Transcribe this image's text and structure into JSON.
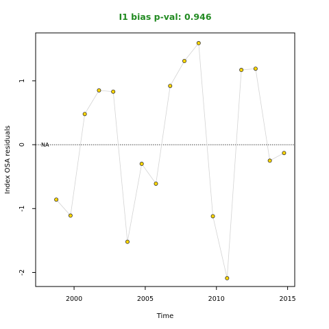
{
  "chart_data": {
    "type": "scatter",
    "title": "I1 bias p-val: 0.946",
    "title_color": "#228B22",
    "xlabel": "Time",
    "ylabel": "Index OSA residuals",
    "xlim": [
      1997.3,
      2015.5
    ],
    "ylim": [
      -2.22,
      1.75
    ],
    "x_ticks": [
      2000,
      2005,
      2010,
      2015
    ],
    "x_tick_labels": [
      "2000",
      "2005",
      "2010",
      "2015"
    ],
    "y_ticks": [
      -2,
      -1,
      0,
      1
    ],
    "y_tick_labels": [
      "-2",
      "-1",
      "0",
      "1"
    ],
    "reference_line": {
      "y": 0,
      "style": "dotted",
      "label": "NA"
    },
    "connecting_line_color": "#d3d3d3",
    "point_fill": "#FFD700",
    "point_stroke": "#333333",
    "grid": false,
    "series": [
      {
        "x": [
          1998.75,
          1999.75,
          2000.75,
          2001.75,
          2002.75,
          2003.75,
          2004.75,
          2005.75,
          2006.75,
          2007.75,
          2008.75,
          2009.75,
          2010.75,
          2011.75,
          2012.75,
          2013.75,
          2014.75
        ],
        "y": [
          -0.86,
          -1.11,
          0.48,
          0.85,
          0.83,
          -1.52,
          -0.3,
          -0.61,
          0.92,
          1.31,
          1.59,
          -1.12,
          -2.09,
          1.17,
          1.19,
          -0.25,
          -0.13
        ]
      }
    ]
  }
}
